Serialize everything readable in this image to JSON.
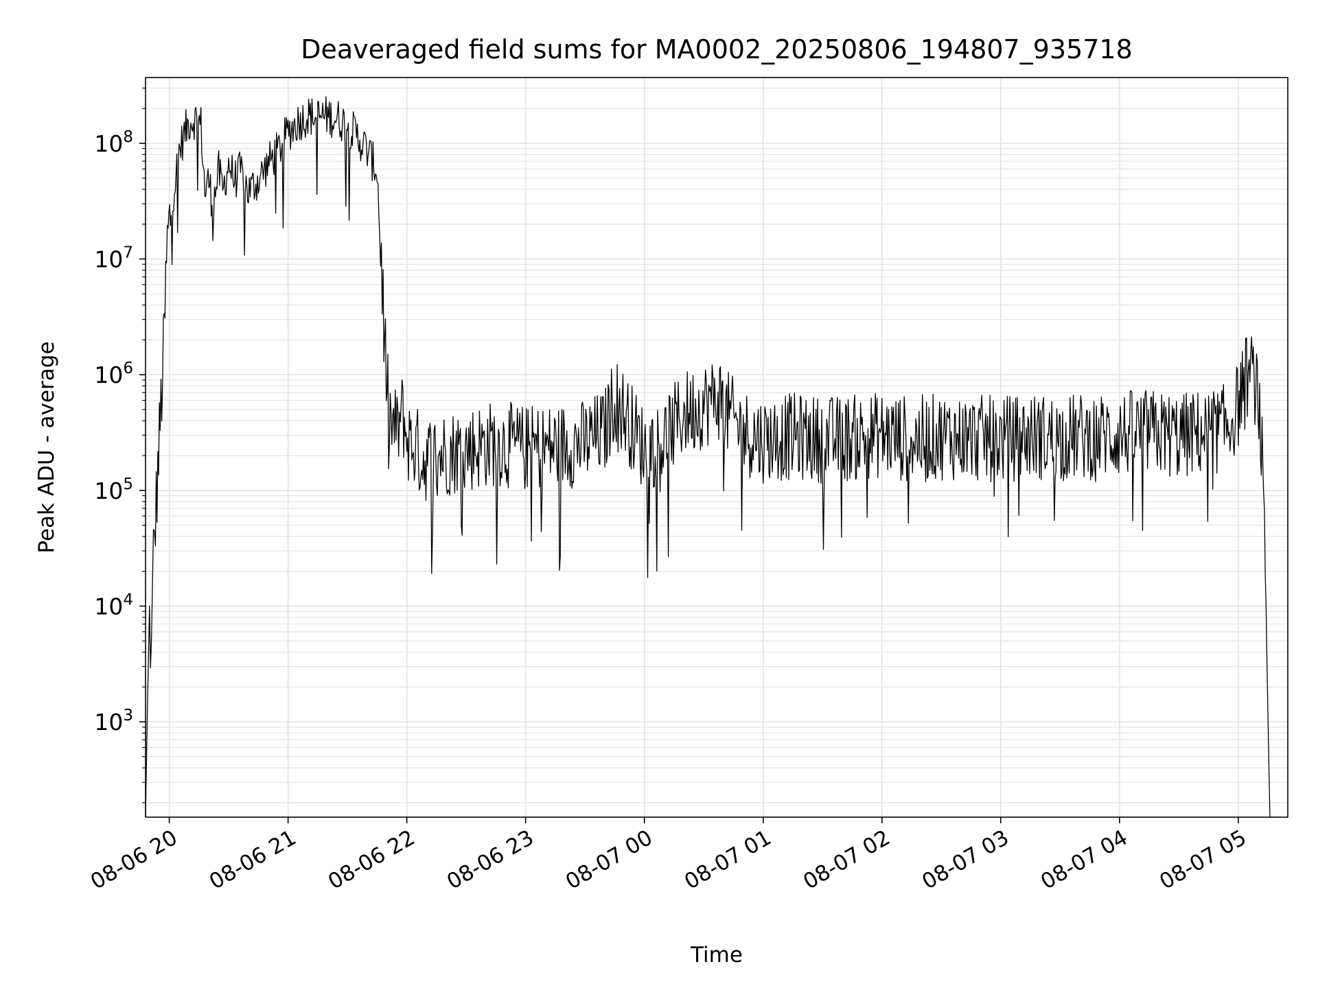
{
  "chart_data": {
    "type": "line",
    "title": "Deaveraged field sums for MA0002_20250806_194807_935718",
    "xlabel": "Time",
    "ylabel": "Peak ADU - average",
    "yscale": "log",
    "grid": true,
    "legend": "none",
    "xlim": [
      "2025-08-06 19:48",
      "2025-08-07 05:25"
    ],
    "ylim": [
      150,
      370000000
    ],
    "x_ticks": [
      "08-06 20",
      "08-06 21",
      "08-06 22",
      "08-06 23",
      "08-07 00",
      "08-07 01",
      "08-07 02",
      "08-07 03",
      "08-07 04",
      "08-07 05"
    ],
    "x_tick_times": [
      "2025-08-06 20:00",
      "2025-08-06 21:00",
      "2025-08-06 22:00",
      "2025-08-06 23:00",
      "2025-08-07 00:00",
      "2025-08-07 01:00",
      "2025-08-07 02:00",
      "2025-08-07 03:00",
      "2025-08-07 04:00",
      "2025-08-07 05:00"
    ],
    "y_tick_exponents": [
      "3",
      "4",
      "5",
      "6",
      "7",
      "8"
    ],
    "y_tick_base": "10",
    "series": [
      {
        "color": "#000000",
        "x": [
          "2025-08-06 19:48",
          "2025-08-06 19:49",
          "2025-08-06 19:50",
          "2025-08-06 19:51",
          "2025-08-06 19:52",
          "2025-08-06 19:53",
          "2025-08-06 19:55",
          "2025-08-06 19:57",
          "2025-08-06 19:59",
          "2025-08-06 20:01",
          "2025-08-06 20:03",
          "2025-08-06 20:05",
          "2025-08-06 20:08",
          "2025-08-06 20:10",
          "2025-08-06 20:13",
          "2025-08-06 20:16",
          "2025-08-06 20:18",
          "2025-08-06 20:20",
          "2025-08-06 20:22",
          "2025-08-06 20:25",
          "2025-08-06 20:27",
          "2025-08-06 20:30",
          "2025-08-06 20:33",
          "2025-08-06 20:36",
          "2025-08-06 20:40",
          "2025-08-06 20:45",
          "2025-08-06 20:50",
          "2025-08-06 20:55",
          "2025-08-06 21:00",
          "2025-08-06 21:05",
          "2025-08-06 21:10",
          "2025-08-06 21:15",
          "2025-08-06 21:20",
          "2025-08-06 21:25",
          "2025-08-06 21:30",
          "2025-08-06 21:35",
          "2025-08-06 21:40",
          "2025-08-06 21:45",
          "2025-08-06 21:48",
          "2025-08-06 21:50",
          "2025-08-06 21:52",
          "2025-08-06 21:55",
          "2025-08-06 21:58",
          "2025-08-06 22:00",
          "2025-08-06 22:05",
          "2025-08-06 22:08",
          "2025-08-06 22:15",
          "2025-08-06 22:30",
          "2025-08-06 22:45",
          "2025-08-06 23:00",
          "2025-08-06 23:15",
          "2025-08-06 23:30",
          "2025-08-06 23:40",
          "2025-08-06 23:45",
          "2025-08-07 00:00",
          "2025-08-07 00:10",
          "2025-08-07 00:20",
          "2025-08-07 00:30",
          "2025-08-07 00:38",
          "2025-08-07 00:42",
          "2025-08-07 00:50",
          "2025-08-07 01:00",
          "2025-08-07 01:15",
          "2025-08-07 01:30",
          "2025-08-07 01:45",
          "2025-08-07 02:00",
          "2025-08-07 02:15",
          "2025-08-07 02:30",
          "2025-08-07 02:45",
          "2025-08-07 03:00",
          "2025-08-07 03:15",
          "2025-08-07 03:30",
          "2025-08-07 03:45",
          "2025-08-07 04:00",
          "2025-08-07 04:10",
          "2025-08-07 04:20",
          "2025-08-07 04:30",
          "2025-08-07 04:40",
          "2025-08-07 04:45",
          "2025-08-07 04:50",
          "2025-08-07 04:55",
          "2025-08-07 05:00",
          "2025-08-07 05:02",
          "2025-08-07 05:05",
          "2025-08-07 05:08",
          "2025-08-07 05:10",
          "2025-08-07 05:12",
          "2025-08-07 05:14",
          "2025-08-07 05:15",
          "2025-08-07 05:16"
        ],
        "y": [
          150,
          1500,
          8000,
          4000,
          30000,
          60000,
          300000,
          1500000,
          15000000,
          30000000,
          50000000,
          90000000,
          130000000,
          160000000,
          170000000,
          150000000,
          40000000,
          50000000,
          30000000,
          60000000,
          40000000,
          70000000,
          50000000,
          60000000,
          40000000,
          50000000,
          70000000,
          90000000,
          130000000,
          160000000,
          180000000,
          175000000,
          180000000,
          170000000,
          150000000,
          120000000,
          90000000,
          60000000,
          5000000,
          800000,
          400000,
          350000,
          500000,
          300000,
          250000,
          200000,
          220000,
          250000,
          280000,
          250000,
          260000,
          280000,
          350000,
          700000,
          250000,
          300000,
          500000,
          600000,
          700000,
          500000,
          350000,
          300000,
          320000,
          300000,
          310000,
          330000,
          300000,
          320000,
          310000,
          300000,
          320000,
          310000,
          320000,
          330000,
          350000,
          340000,
          320000,
          340000,
          350000,
          360000,
          400000,
          600000,
          900000,
          1100000,
          1000000,
          800000,
          200000,
          10000,
          1000,
          150
        ]
      }
    ]
  }
}
